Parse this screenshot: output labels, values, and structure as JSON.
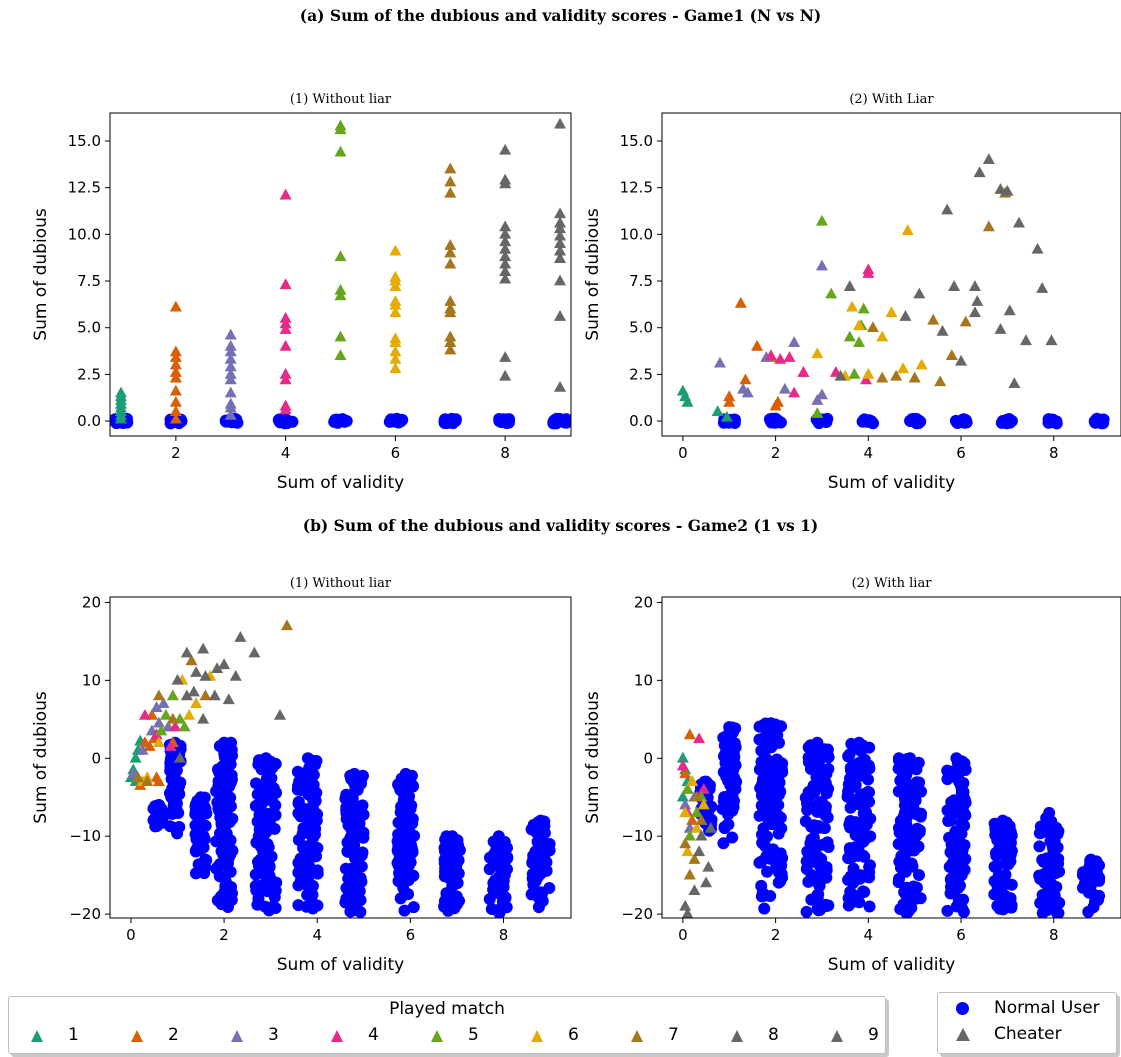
{
  "section_titles": {
    "a": "(a) Sum of the dubious and validity scores - Game1 (N vs N)",
    "b": "(b) Sum of the dubious and validity scores - Game2 (1 vs 1)"
  },
  "colors": {
    "matches": [
      "#1b9e77",
      "#d95f02",
      "#7570b3",
      "#e7298a",
      "#66a61e",
      "#e6ab02",
      "#a6761d",
      "#666666",
      "#666666"
    ],
    "normal_user": "#0000ff",
    "cheater": "#666666"
  },
  "legend": {
    "title": "Played match",
    "items": [
      "1",
      "2",
      "3",
      "4",
      "5",
      "6",
      "7",
      "8",
      "9"
    ]
  },
  "legend_type": {
    "items": [
      {
        "label": "Normal User",
        "marker": "circle",
        "color": "#0000ff"
      },
      {
        "label": "Cheater",
        "marker": "triangle",
        "color": "#666666"
      }
    ]
  },
  "chart_data": [
    {
      "type": "scatter",
      "title": "(1) Without liar",
      "xlabel": "Sum of validity",
      "ylabel": "Sum of dubious",
      "xlim": [
        0.8,
        9.2
      ],
      "ylim": [
        -0.8,
        16.5
      ],
      "xticks": [
        2,
        4,
        6,
        8
      ],
      "yticks": [
        0.0,
        2.5,
        5.0,
        7.5,
        10.0,
        12.5,
        15.0
      ],
      "ytick_labels": [
        "0.0",
        "2.5",
        "5.0",
        "7.5",
        "10.0",
        "12.5",
        "15.0"
      ],
      "normal_user": {
        "x_columns": [
          1,
          2,
          3,
          4,
          5,
          6,
          7,
          8,
          9
        ],
        "y": 0.0
      },
      "cheater_series": [
        {
          "match": "1",
          "x": [
            1,
            1,
            1,
            1,
            1,
            1,
            1,
            1
          ],
          "y": [
            0.1,
            0.3,
            0.5,
            0.7,
            0.9,
            1.1,
            1.3,
            1.5
          ]
        },
        {
          "match": "2",
          "x": [
            2,
            2,
            2,
            2,
            2,
            2,
            2,
            2,
            2,
            2
          ],
          "y": [
            0.1,
            0.5,
            1.0,
            1.6,
            2.3,
            2.6,
            3.0,
            3.4,
            3.7,
            6.1
          ]
        },
        {
          "match": "3",
          "x": [
            3,
            3,
            3,
            3,
            3,
            3,
            3,
            3,
            3,
            3,
            3
          ],
          "y": [
            0.3,
            0.7,
            0.9,
            1.5,
            2.2,
            2.5,
            2.9,
            3.3,
            3.7,
            4.0,
            4.6
          ]
        },
        {
          "match": "4",
          "x": [
            4,
            4,
            4,
            4,
            4,
            4,
            4,
            4,
            4,
            4
          ],
          "y": [
            0.6,
            0.8,
            2.2,
            2.5,
            4.0,
            4.9,
            5.2,
            5.5,
            7.3,
            12.1
          ]
        },
        {
          "match": "5",
          "x": [
            5,
            5,
            5,
            5,
            5,
            5,
            5,
            5
          ],
          "y": [
            3.5,
            4.5,
            6.7,
            7.0,
            8.8,
            14.4,
            15.6,
            15.8
          ]
        },
        {
          "match": "6",
          "x": [
            6,
            6,
            6,
            6,
            6,
            6,
            6,
            6,
            6,
            6,
            6,
            6
          ],
          "y": [
            2.8,
            3.3,
            3.7,
            4.2,
            4.4,
            5.8,
            6.2,
            6.4,
            7.2,
            7.5,
            7.7,
            9.1
          ]
        },
        {
          "match": "7",
          "x": [
            7,
            7,
            7,
            7,
            7,
            7,
            7,
            7,
            7,
            7,
            7,
            7
          ],
          "y": [
            3.8,
            4.2,
            4.5,
            5.8,
            6.0,
            6.4,
            8.4,
            9.0,
            9.4,
            12.2,
            12.8,
            13.5
          ]
        },
        {
          "match": "8",
          "x": [
            8,
            8,
            8,
            8,
            8,
            8,
            8,
            8,
            8,
            8,
            8,
            8,
            8
          ],
          "y": [
            2.4,
            3.4,
            7.6,
            8.0,
            8.4,
            8.8,
            9.2,
            9.6,
            10.0,
            10.4,
            12.7,
            12.9,
            14.5
          ]
        },
        {
          "match": "9",
          "x": [
            9,
            9,
            9,
            9,
            9,
            9,
            9,
            9,
            9,
            9,
            9
          ],
          "y": [
            1.8,
            5.6,
            7.5,
            8.7,
            9.1,
            9.5,
            9.9,
            10.3,
            10.6,
            11.1,
            15.9
          ]
        }
      ]
    },
    {
      "type": "scatter",
      "title": "(2) With Liar",
      "xlabel": "Sum of validity",
      "ylabel": "Sum of dubious",
      "xlim": [
        -0.45,
        9.45
      ],
      "ylim": [
        -0.8,
        16.5
      ],
      "xticks": [
        0,
        2,
        4,
        6,
        8
      ],
      "yticks": [
        0.0,
        2.5,
        5.0,
        7.5,
        10.0,
        12.5,
        15.0
      ],
      "ytick_labels": [
        "0.0",
        "2.5",
        "5.0",
        "7.5",
        "10.0",
        "12.5",
        "15.0"
      ],
      "normal_user": {
        "x_columns": [
          1,
          2,
          3,
          4,
          5,
          6,
          7,
          8,
          9
        ],
        "y": 0.0
      },
      "cheater_series": [
        {
          "match": "1",
          "x": [
            0.0,
            0.05,
            0.1,
            0.75,
            0.95
          ],
          "y": [
            1.6,
            1.3,
            1.0,
            0.5,
            0.2
          ]
        },
        {
          "match": "2",
          "x": [
            1.0,
            1.0,
            1.25,
            1.35,
            1.6,
            2.0,
            2.05,
            1.9
          ],
          "y": [
            1.3,
            1.0,
            6.3,
            2.2,
            4.0,
            0.8,
            1.0,
            3.4
          ]
        },
        {
          "match": "3",
          "x": [
            0.8,
            1.3,
            1.4,
            1.8,
            2.2,
            2.4,
            2.6,
            2.9,
            3.0,
            3.0
          ],
          "y": [
            3.1,
            1.7,
            1.5,
            3.4,
            1.7,
            4.2,
            2.6,
            1.1,
            1.4,
            8.3
          ]
        },
        {
          "match": "4",
          "x": [
            1.9,
            2.1,
            2.3,
            2.4,
            2.6,
            3.3,
            4.0,
            4.0,
            3.95
          ],
          "y": [
            3.5,
            3.3,
            3.4,
            1.5,
            2.6,
            2.6,
            8.1,
            7.9,
            2.2
          ]
        },
        {
          "match": "5",
          "x": [
            2.9,
            3.0,
            3.2,
            3.6,
            3.7,
            3.8,
            3.9,
            3.85
          ],
          "y": [
            0.4,
            10.7,
            6.8,
            4.5,
            2.5,
            4.2,
            6.0,
            5.1
          ]
        },
        {
          "match": "6",
          "x": [
            2.9,
            3.5,
            3.65,
            3.8,
            4.0,
            4.3,
            4.5,
            4.75,
            4.85,
            5.15
          ],
          "y": [
            3.6,
            2.4,
            6.1,
            5.1,
            2.5,
            4.5,
            5.8,
            2.8,
            10.2,
            3.0
          ]
        },
        {
          "match": "7",
          "x": [
            4.3,
            4.6,
            5.0,
            5.4,
            5.55,
            5.8,
            6.1,
            6.6,
            6.95,
            4.1
          ],
          "y": [
            2.3,
            2.4,
            2.3,
            5.4,
            2.1,
            3.5,
            5.3,
            10.4,
            12.2,
            5.0
          ]
        },
        {
          "match": "8",
          "x": [
            3.4,
            3.6,
            4.8,
            5.1,
            5.6,
            5.7,
            5.85,
            6.0,
            6.3,
            6.35,
            6.4,
            6.6,
            6.85,
            7.0
          ],
          "y": [
            2.4,
            7.2,
            5.6,
            6.8,
            4.8,
            11.3,
            7.2,
            3.2,
            5.8,
            6.4,
            13.3,
            14.0,
            4.9,
            12.3
          ]
        },
        {
          "match": "9",
          "x": [
            6.3,
            6.85,
            7.05,
            7.15,
            7.25,
            7.4,
            7.65,
            7.75,
            7.95
          ],
          "y": [
            7.2,
            12.4,
            5.9,
            2.0,
            10.6,
            4.3,
            9.2,
            7.1,
            4.3
          ]
        }
      ]
    },
    {
      "type": "scatter",
      "title": "(1) Without liar",
      "xlabel": "Sum of validity",
      "ylabel": "Sum of dubious",
      "xlim": [
        -0.45,
        9.45
      ],
      "ylim": [
        -20.5,
        20.7
      ],
      "xticks": [
        0,
        2,
        4,
        6,
        8
      ],
      "yticks": [
        -20,
        -10,
        0,
        10,
        20
      ],
      "ytick_labels": [
        "−20",
        "−10",
        "0",
        "10",
        "20"
      ],
      "normal_user_columns": [
        {
          "x": 0.6,
          "ymin": -9,
          "ymax": -6,
          "xspread": 0.12
        },
        {
          "x": 0.95,
          "ymin": -10,
          "ymax": 2,
          "xspread": 0.12
        },
        {
          "x": 1.5,
          "ymin": -15,
          "ymax": -5,
          "xspread": 0.12
        },
        {
          "x": 2.0,
          "ymin": -20,
          "ymax": 2,
          "xspread": 0.18
        },
        {
          "x": 2.9,
          "ymin": -20,
          "ymax": 0,
          "xspread": 0.22
        },
        {
          "x": 3.8,
          "ymin": -20,
          "ymax": 0,
          "xspread": 0.22
        },
        {
          "x": 4.8,
          "ymin": -20,
          "ymax": -2,
          "xspread": 0.2
        },
        {
          "x": 5.9,
          "ymin": -20,
          "ymax": -2,
          "xspread": 0.18
        },
        {
          "x": 6.9,
          "ymin": -20,
          "ymax": -10,
          "xspread": 0.18
        },
        {
          "x": 7.9,
          "ymin": -20,
          "ymax": -10,
          "xspread": 0.2
        },
        {
          "x": 8.8,
          "ymin": -20,
          "ymax": -8,
          "xspread": 0.2
        }
      ],
      "cheater_series": [
        {
          "match": "1",
          "x": [
            0.0,
            0.05,
            0.1,
            0.15,
            0.2,
            0.1
          ],
          "y": [
            -2.5,
            -1.5,
            0,
            1,
            2.2,
            -3
          ]
        },
        {
          "match": "2",
          "x": [
            0.2,
            0.3,
            0.4,
            0.5,
            0.55,
            0.6,
            0.45,
            0.9
          ],
          "y": [
            -3.5,
            2,
            1.5,
            2.5,
            -2.5,
            -3,
            5.5,
            2
          ]
        },
        {
          "match": "3",
          "x": [
            0.05,
            0.25,
            0.45,
            0.55,
            0.6,
            0.7,
            0.8
          ],
          "y": [
            -2,
            1,
            3.5,
            6.5,
            4.5,
            7,
            4
          ]
        },
        {
          "match": "4",
          "x": [
            0.3,
            0.55,
            0.85,
            0.95
          ],
          "y": [
            5.5,
            3,
            1.5,
            4
          ]
        },
        {
          "match": "5",
          "x": [
            0.65,
            0.75,
            0.9,
            1.05,
            1.15
          ],
          "y": [
            3.5,
            5.5,
            8,
            5,
            4
          ]
        },
        {
          "match": "6",
          "x": [
            0.25,
            0.6,
            1.1,
            1.25,
            1.4,
            1.7,
            0.35
          ],
          "y": [
            -3,
            2,
            10,
            5.5,
            7,
            10.5,
            -2.5
          ]
        },
        {
          "match": "7",
          "x": [
            0.35,
            0.6,
            0.9,
            1.3,
            1.6,
            3.35,
            0.15
          ],
          "y": [
            -3,
            8,
            5,
            12.5,
            8,
            17,
            -2.5
          ]
        },
        {
          "match": "8",
          "x": [
            1.0,
            1.2,
            1.4,
            1.55,
            1.85,
            2.1,
            2.35,
            2.65,
            3.2
          ],
          "y": [
            10,
            13.5,
            11,
            5,
            11.5,
            7.5,
            15.5,
            13.5,
            5.5
          ]
        },
        {
          "match": "9",
          "x": [
            1.05,
            1.2,
            1.35,
            1.55,
            1.6,
            1.8,
            2.0,
            2.25
          ],
          "y": [
            0,
            8,
            8.5,
            14,
            10.5,
            8,
            12,
            10.5
          ]
        }
      ]
    },
    {
      "type": "scatter",
      "title": "(2) With liar",
      "xlabel": "Sum of validity",
      "ylabel": "Sum of dubious",
      "xlim": [
        -0.45,
        9.45
      ],
      "ylim": [
        -20.5,
        20.7
      ],
      "xticks": [
        0,
        2,
        4,
        6,
        8
      ],
      "yticks": [
        -20,
        -10,
        0,
        10,
        20
      ],
      "ytick_labels": [
        "−20",
        "−10",
        "0",
        "10",
        "20"
      ],
      "normal_user_columns": [
        {
          "x": 0.5,
          "ymin": -10,
          "ymax": -3,
          "xspread": 0.12
        },
        {
          "x": 1.0,
          "ymin": -11,
          "ymax": 4,
          "xspread": 0.15
        },
        {
          "x": 1.9,
          "ymin": -20,
          "ymax": 4.5,
          "xspread": 0.25
        },
        {
          "x": 2.9,
          "ymin": -20,
          "ymax": 2,
          "xspread": 0.25
        },
        {
          "x": 3.8,
          "ymin": -20,
          "ymax": 2,
          "xspread": 0.25
        },
        {
          "x": 4.9,
          "ymin": -20,
          "ymax": 0,
          "xspread": 0.25
        },
        {
          "x": 5.9,
          "ymin": -20,
          "ymax": 0,
          "xspread": 0.2
        },
        {
          "x": 6.9,
          "ymin": -20,
          "ymax": -8,
          "xspread": 0.2
        },
        {
          "x": 7.9,
          "ymin": -20,
          "ymax": -7,
          "xspread": 0.22
        },
        {
          "x": 8.8,
          "ymin": -20,
          "ymax": -13,
          "xspread": 0.18
        }
      ],
      "cheater_series": [
        {
          "match": "1",
          "x": [
            0.0,
            0.05,
            0.1,
            0.0
          ],
          "y": [
            0,
            -1.5,
            -3,
            -5
          ]
        },
        {
          "match": "2",
          "x": [
            0.05,
            0.1,
            0.15,
            0.2
          ],
          "y": [
            -2,
            -4,
            3,
            -8
          ]
        },
        {
          "match": "3",
          "x": [
            0.05,
            0.15,
            0.2,
            0.25
          ],
          "y": [
            -6,
            -9,
            -3,
            -5
          ]
        },
        {
          "match": "4",
          "x": [
            0.0,
            0.1,
            0.35,
            0.45
          ],
          "y": [
            -1,
            -7,
            2.5,
            -4
          ]
        },
        {
          "match": "5",
          "x": [
            0.1,
            0.15,
            0.3,
            0.4
          ],
          "y": [
            -4,
            -10,
            -7,
            -5
          ]
        },
        {
          "match": "6",
          "x": [
            0.05,
            0.1,
            0.2,
            0.3,
            0.45
          ],
          "y": [
            -7,
            -12,
            -3,
            -9,
            -6
          ]
        },
        {
          "match": "7",
          "x": [
            0.05,
            0.15,
            0.25,
            0.3,
            0.4
          ],
          "y": [
            -11,
            -15,
            -13,
            -5,
            -8
          ]
        },
        {
          "match": "8",
          "x": [
            0.05,
            0.25,
            0.4,
            0.55
          ],
          "y": [
            -19,
            -17,
            -10,
            -14
          ]
        },
        {
          "match": "9",
          "x": [
            0.1,
            0.35,
            0.5,
            0.6
          ],
          "y": [
            -20,
            -12,
            -16,
            -9
          ]
        }
      ]
    }
  ]
}
